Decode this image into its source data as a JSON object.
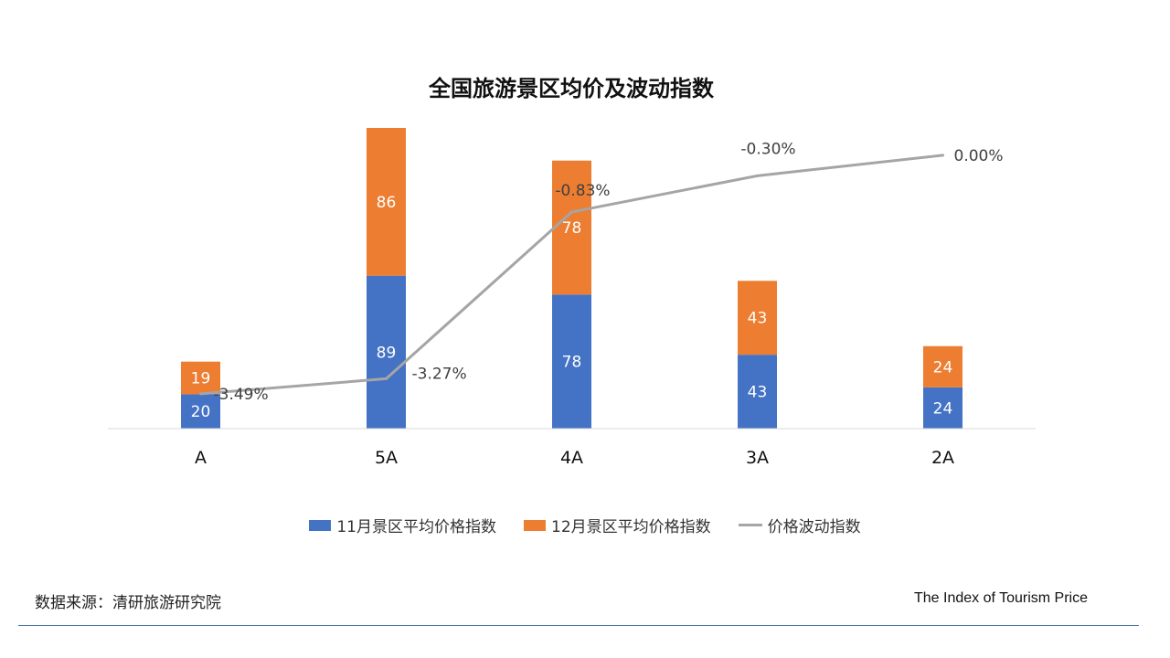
{
  "chart_data": {
    "type": "bar",
    "title": "全国旅游景区均价及波动指数",
    "categories": [
      "A",
      "5A",
      "4A",
      "3A",
      "2A"
    ],
    "series": [
      {
        "name": "11月景区平均价格指数",
        "kind": "stacked-bar",
        "color": "#4472c4",
        "values": [
          20,
          89,
          78,
          43,
          24
        ],
        "labels": [
          "20",
          "89",
          "78",
          "43",
          "24"
        ]
      },
      {
        "name": "12月景区平均价格指数",
        "kind": "stacked-bar",
        "color": "#ed7d31",
        "values": [
          19,
          86,
          78,
          43,
          24
        ],
        "labels": [
          "19",
          "86",
          "78",
          "43",
          "24"
        ]
      },
      {
        "name": "价格波动指数",
        "kind": "line",
        "color": "#a5a5a5",
        "values": [
          -3.49,
          -3.27,
          -0.83,
          -0.3,
          0.0
        ],
        "labels": [
          "-3.49%",
          "-3.27%",
          "-0.83%",
          "-0.30%",
          "0.00%"
        ]
      }
    ],
    "ylim": [
      0,
      175
    ],
    "y2lim": [
      -4.0,
      0.4
    ],
    "grid": false,
    "legend_position": "bottom"
  },
  "footer": {
    "source": "数据来源：清研旅游研究院",
    "english_title": "The Index of Tourism Price"
  }
}
